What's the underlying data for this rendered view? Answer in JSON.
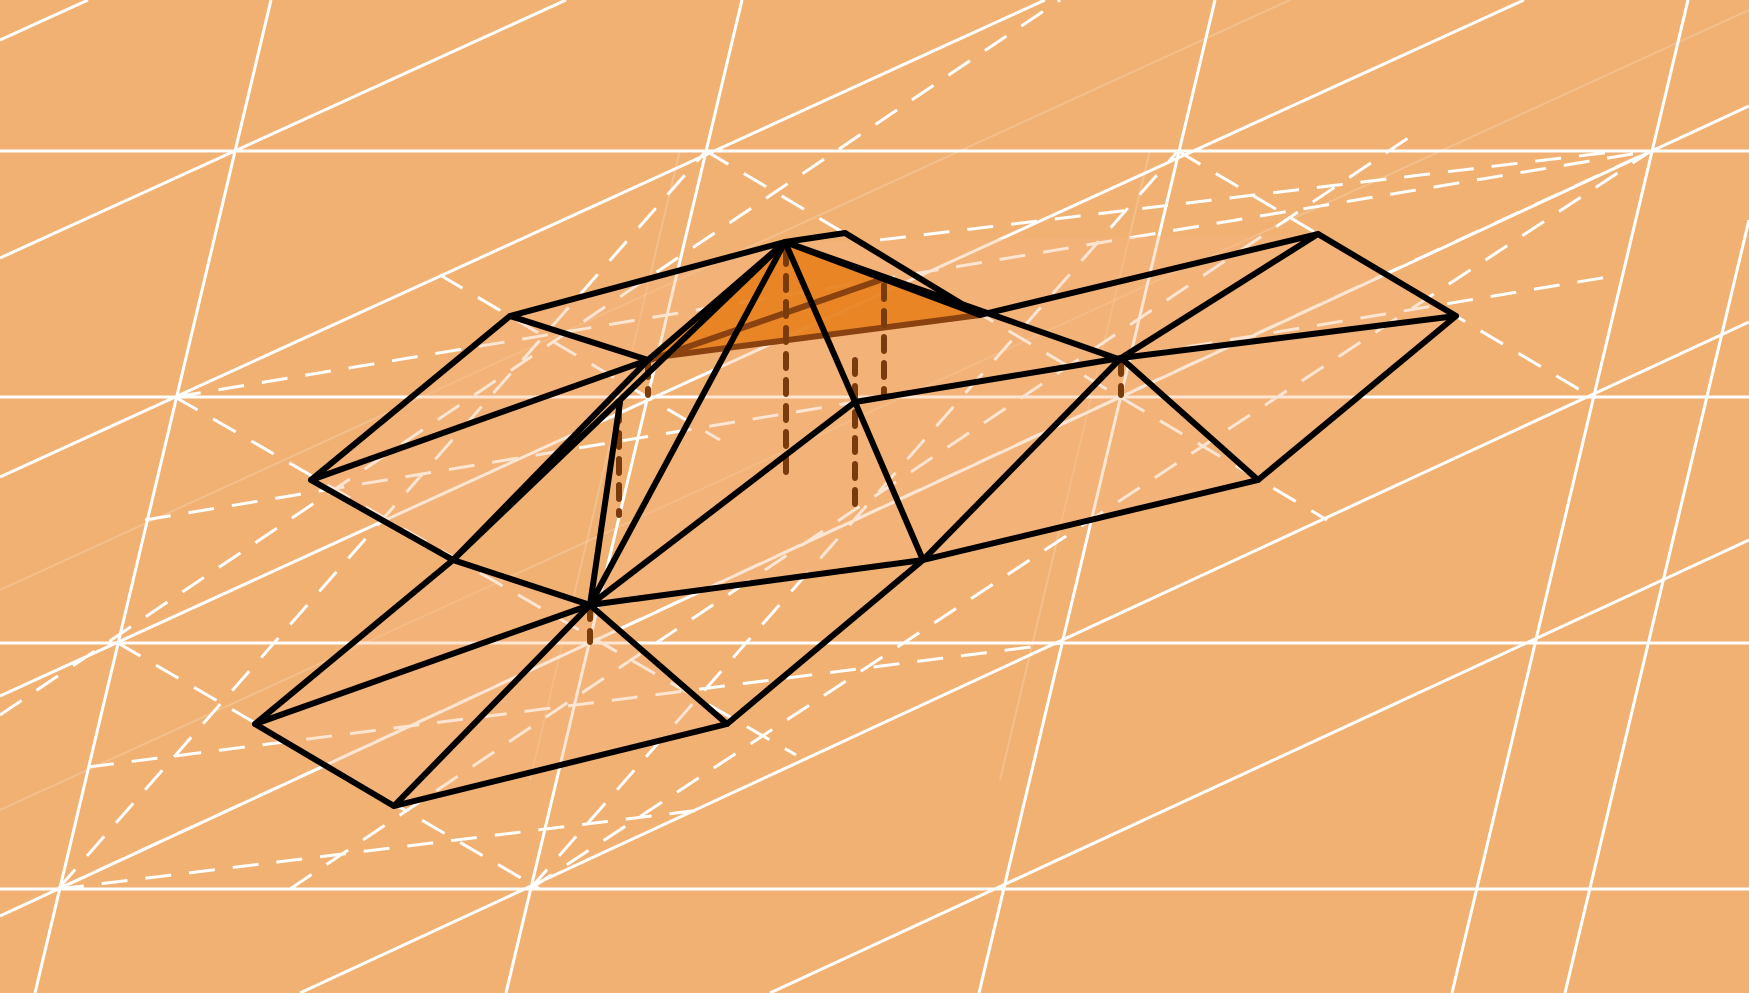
{
  "colors": {
    "background": "#f1b173",
    "grid": "#ffffff",
    "mesh_edge": "#000000",
    "highlight_fill": "#e8801c",
    "drop_line": "#7a3b0c"
  }
}
